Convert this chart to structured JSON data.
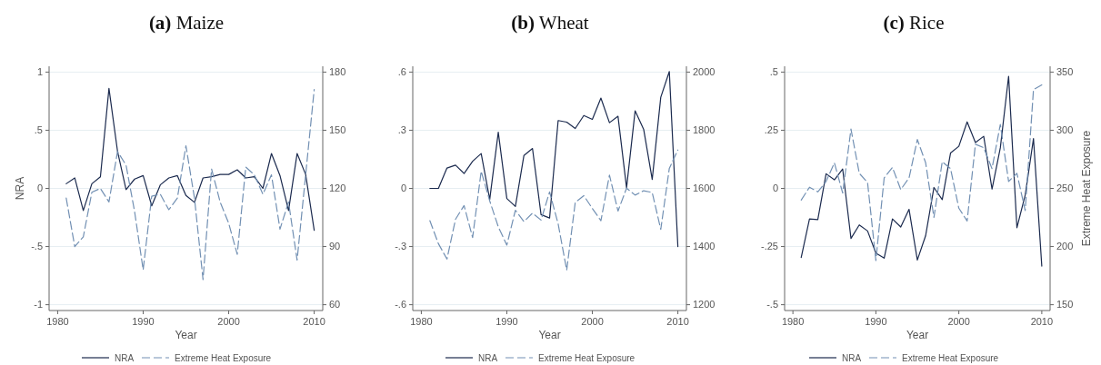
{
  "chart_data": [
    {
      "type": "line",
      "title": "(a) Maize",
      "xlabel": "Year",
      "ylabel": "NRA",
      "xlim": [
        1979,
        2011
      ],
      "xticks": [
        1980,
        1990,
        2000,
        2010
      ],
      "ylim": [
        -1.05,
        1.05
      ],
      "yticks": [
        {
          "value": -1,
          "label": "-1"
        },
        {
          "value": -0.5,
          "label": "-.5"
        },
        {
          "value": 0,
          "label": "0"
        },
        {
          "value": 0.5,
          "label": ".5"
        },
        {
          "value": 1,
          "label": "1"
        }
      ],
      "y2lim": [
        57,
        183
      ],
      "y2ticks": [
        60,
        90,
        120,
        150,
        180
      ],
      "grid": "y",
      "legend": "bottom",
      "x": [
        1981,
        1982,
        1983,
        1984,
        1985,
        1986,
        1987,
        1988,
        1989,
        1990,
        1991,
        1992,
        1993,
        1994,
        1995,
        1996,
        1997,
        1998,
        1999,
        2000,
        2001,
        2002,
        2003,
        2004,
        2005,
        2006,
        2007,
        2008,
        2009,
        2010
      ],
      "series": [
        {
          "name": "NRA",
          "color": "#1b2a4e",
          "line_style": "solid",
          "values": [
            0.04,
            0.09,
            -0.19,
            0.04,
            0.1,
            0.86,
            0.32,
            -0.01,
            0.08,
            0.11,
            -0.15,
            0.03,
            0.09,
            0.11,
            -0.06,
            -0.12,
            0.09,
            0.1,
            0.12,
            0.12,
            0.16,
            0.09,
            0.1,
            0,
            0.3,
            0.11,
            -0.19,
            0.3,
            0.12,
            -0.36
          ]
        },
        {
          "name": "Extreme Heat Exposure",
          "color": "#7290b3",
          "line_style": "dashed",
          "axis": "y2",
          "values": [
            115,
            90,
            95,
            118,
            120,
            113,
            139,
            132,
            108,
            78,
            116,
            117,
            109,
            115,
            142,
            115,
            73,
            130,
            113,
            102,
            86,
            131,
            127,
            117,
            127,
            99,
            113,
            83,
            127,
            171
          ]
        }
      ]
    },
    {
      "type": "line",
      "title": "(b) Wheat",
      "xlabel": "Year",
      "xlim": [
        1979,
        2011
      ],
      "xticks": [
        1980,
        1990,
        2000,
        2010
      ],
      "ylim": [
        -0.63,
        0.63
      ],
      "yticks": [
        {
          "value": -0.6,
          "label": "-.6"
        },
        {
          "value": -0.3,
          "label": "-.3"
        },
        {
          "value": 0,
          "label": "0"
        },
        {
          "value": 0.3,
          "label": ".3"
        },
        {
          "value": 0.6,
          "label": ".6"
        }
      ],
      "y2lim": [
        1180,
        2020
      ],
      "y2ticks": [
        1200,
        1400,
        1600,
        1800,
        2000
      ],
      "grid": "y",
      "legend": "bottom",
      "x": [
        1981,
        1982,
        1983,
        1984,
        1985,
        1986,
        1987,
        1988,
        1989,
        1990,
        1991,
        1992,
        1993,
        1994,
        1995,
        1996,
        1997,
        1998,
        1999,
        2000,
        2001,
        2002,
        2003,
        2004,
        2005,
        2006,
        2007,
        2008,
        2009,
        2010
      ],
      "series": [
        {
          "name": "NRA",
          "color": "#1b2a4e",
          "line_style": "solid",
          "values": [
            0,
            0,
            0.105,
            0.12,
            0.077,
            0.14,
            0.18,
            -0.057,
            0.29,
            -0.052,
            -0.093,
            0.17,
            0.206,
            -0.135,
            -0.153,
            0.35,
            0.342,
            0.309,
            0.376,
            0.356,
            0.466,
            0.339,
            0.372,
            0.003,
            0.4,
            0.305,
            0.046,
            0.47,
            0.603,
            -0.3
          ]
        },
        {
          "name": "Extreme Heat Exposure",
          "color": "#7290b3",
          "line_style": "dashed",
          "axis": "y2",
          "values": [
            1489,
            1410,
            1357,
            1494,
            1541,
            1431,
            1659,
            1557,
            1468,
            1405,
            1525,
            1486,
            1515,
            1491,
            1588,
            1478,
            1319,
            1552,
            1575,
            1531,
            1489,
            1646,
            1522,
            1601,
            1577,
            1592,
            1586,
            1459,
            1669,
            1732
          ]
        }
      ]
    },
    {
      "type": "line",
      "title": "(c) Rice",
      "xlabel": "Year",
      "y2label": "Extreme Heat Exposure",
      "xlim": [
        1979,
        2011
      ],
      "xticks": [
        1980,
        1990,
        2000,
        2010
      ],
      "ylim": [
        -0.525,
        0.525
      ],
      "yticks": [
        {
          "value": -0.5,
          "label": "-.5"
        },
        {
          "value": -0.25,
          "label": "-.25"
        },
        {
          "value": 0,
          "label": "0"
        },
        {
          "value": 0.25,
          "label": ".25"
        },
        {
          "value": 0.5,
          "label": ".5"
        }
      ],
      "y2lim": [
        145,
        355
      ],
      "y2ticks": [
        150,
        200,
        250,
        300,
        350
      ],
      "grid": "y",
      "legend": "bottom",
      "x": [
        1981,
        1982,
        1983,
        1984,
        1985,
        1986,
        1987,
        1988,
        1989,
        1990,
        1991,
        1992,
        1993,
        1994,
        1995,
        1996,
        1997,
        1998,
        1999,
        2000,
        2001,
        2002,
        2003,
        2004,
        2005,
        2006,
        2007,
        2008,
        2009,
        2010
      ],
      "series": [
        {
          "name": "NRA",
          "color": "#1b2a4e",
          "line_style": "solid",
          "values": [
            -0.297,
            -0.131,
            -0.134,
            0.063,
            0.037,
            0.083,
            -0.215,
            -0.157,
            -0.183,
            -0.278,
            -0.3,
            -0.131,
            -0.166,
            -0.09,
            -0.308,
            -0.203,
            0.004,
            -0.048,
            0.152,
            0.181,
            0.286,
            0.197,
            0.224,
            -0.003,
            0.174,
            0.482,
            -0.169,
            -0.029,
            0.214,
            -0.334
          ]
        },
        {
          "name": "Extreme Heat Exposure",
          "color": "#7290b3",
          "line_style": "dashed",
          "axis": "y2",
          "values": [
            240,
            251,
            247,
            256,
            272,
            246,
            301,
            263,
            255,
            188,
            259,
            268,
            249,
            259,
            292,
            272,
            225,
            273,
            267,
            233,
            222,
            288,
            285,
            267,
            305,
            256,
            263,
            231,
            335,
            339
          ]
        }
      ]
    }
  ]
}
